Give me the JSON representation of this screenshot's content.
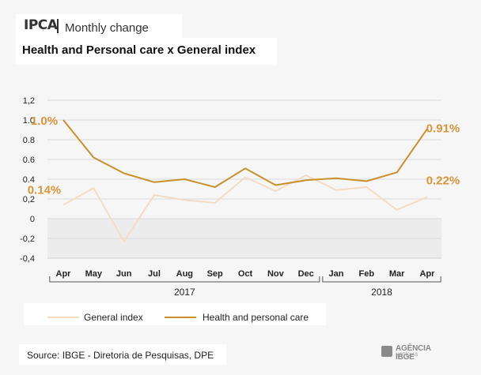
{
  "header": {
    "brand": "IPCA",
    "subtitle": "Monthly change"
  },
  "title": "Health and Personal care x General index",
  "legend": {
    "general": "General index",
    "health": "Health and personal care"
  },
  "source": "Source: IBGE - Diretoria de Pesquisas, DPE",
  "logo": {
    "name": "AGÊNCIA IBGE",
    "sub": "NOTÍCIAS"
  },
  "chart_data": {
    "type": "line",
    "categories": [
      "Apr",
      "May",
      "Jun",
      "Jul",
      "Aug",
      "Sep",
      "Oct",
      "Nov",
      "Dec",
      "Jan",
      "Feb",
      "Mar",
      "Apr"
    ],
    "year_groups": [
      {
        "label": "2017",
        "start": 0,
        "end": 8
      },
      {
        "label": "2018",
        "start": 9,
        "end": 12
      }
    ],
    "series": [
      {
        "name": "General index",
        "color": "#f2dcc5",
        "values": [
          0.14,
          0.31,
          -0.23,
          0.24,
          0.19,
          0.16,
          0.42,
          0.28,
          0.44,
          0.29,
          0.32,
          0.09,
          0.22
        ]
      },
      {
        "name": "Health and personal care",
        "color": "#c8912b",
        "values": [
          1.0,
          0.62,
          0.46,
          0.37,
          0.4,
          0.32,
          0.51,
          0.34,
          0.39,
          0.41,
          0.38,
          0.47,
          0.91
        ]
      }
    ],
    "y_ticks": [
      "1,2",
      "1.0",
      "0.8",
      "0.6",
      "0.4",
      "0,2",
      "0",
      "-0,2",
      "-0,4"
    ],
    "y_tick_values": [
      1.2,
      1.0,
      0.8,
      0.6,
      0.4,
      0.2,
      0,
      -0.2,
      -0.4
    ],
    "ylim": [
      -0.4,
      1.2
    ],
    "annotations": [
      {
        "text": "1.0%",
        "series": 1,
        "index": 0
      },
      {
        "text": "0.14%",
        "series": 0,
        "index": 0
      },
      {
        "text": "0.91%",
        "series": 1,
        "index": 12
      },
      {
        "text": "0.22%",
        "series": 0,
        "index": 12
      }
    ],
    "grid": true
  }
}
